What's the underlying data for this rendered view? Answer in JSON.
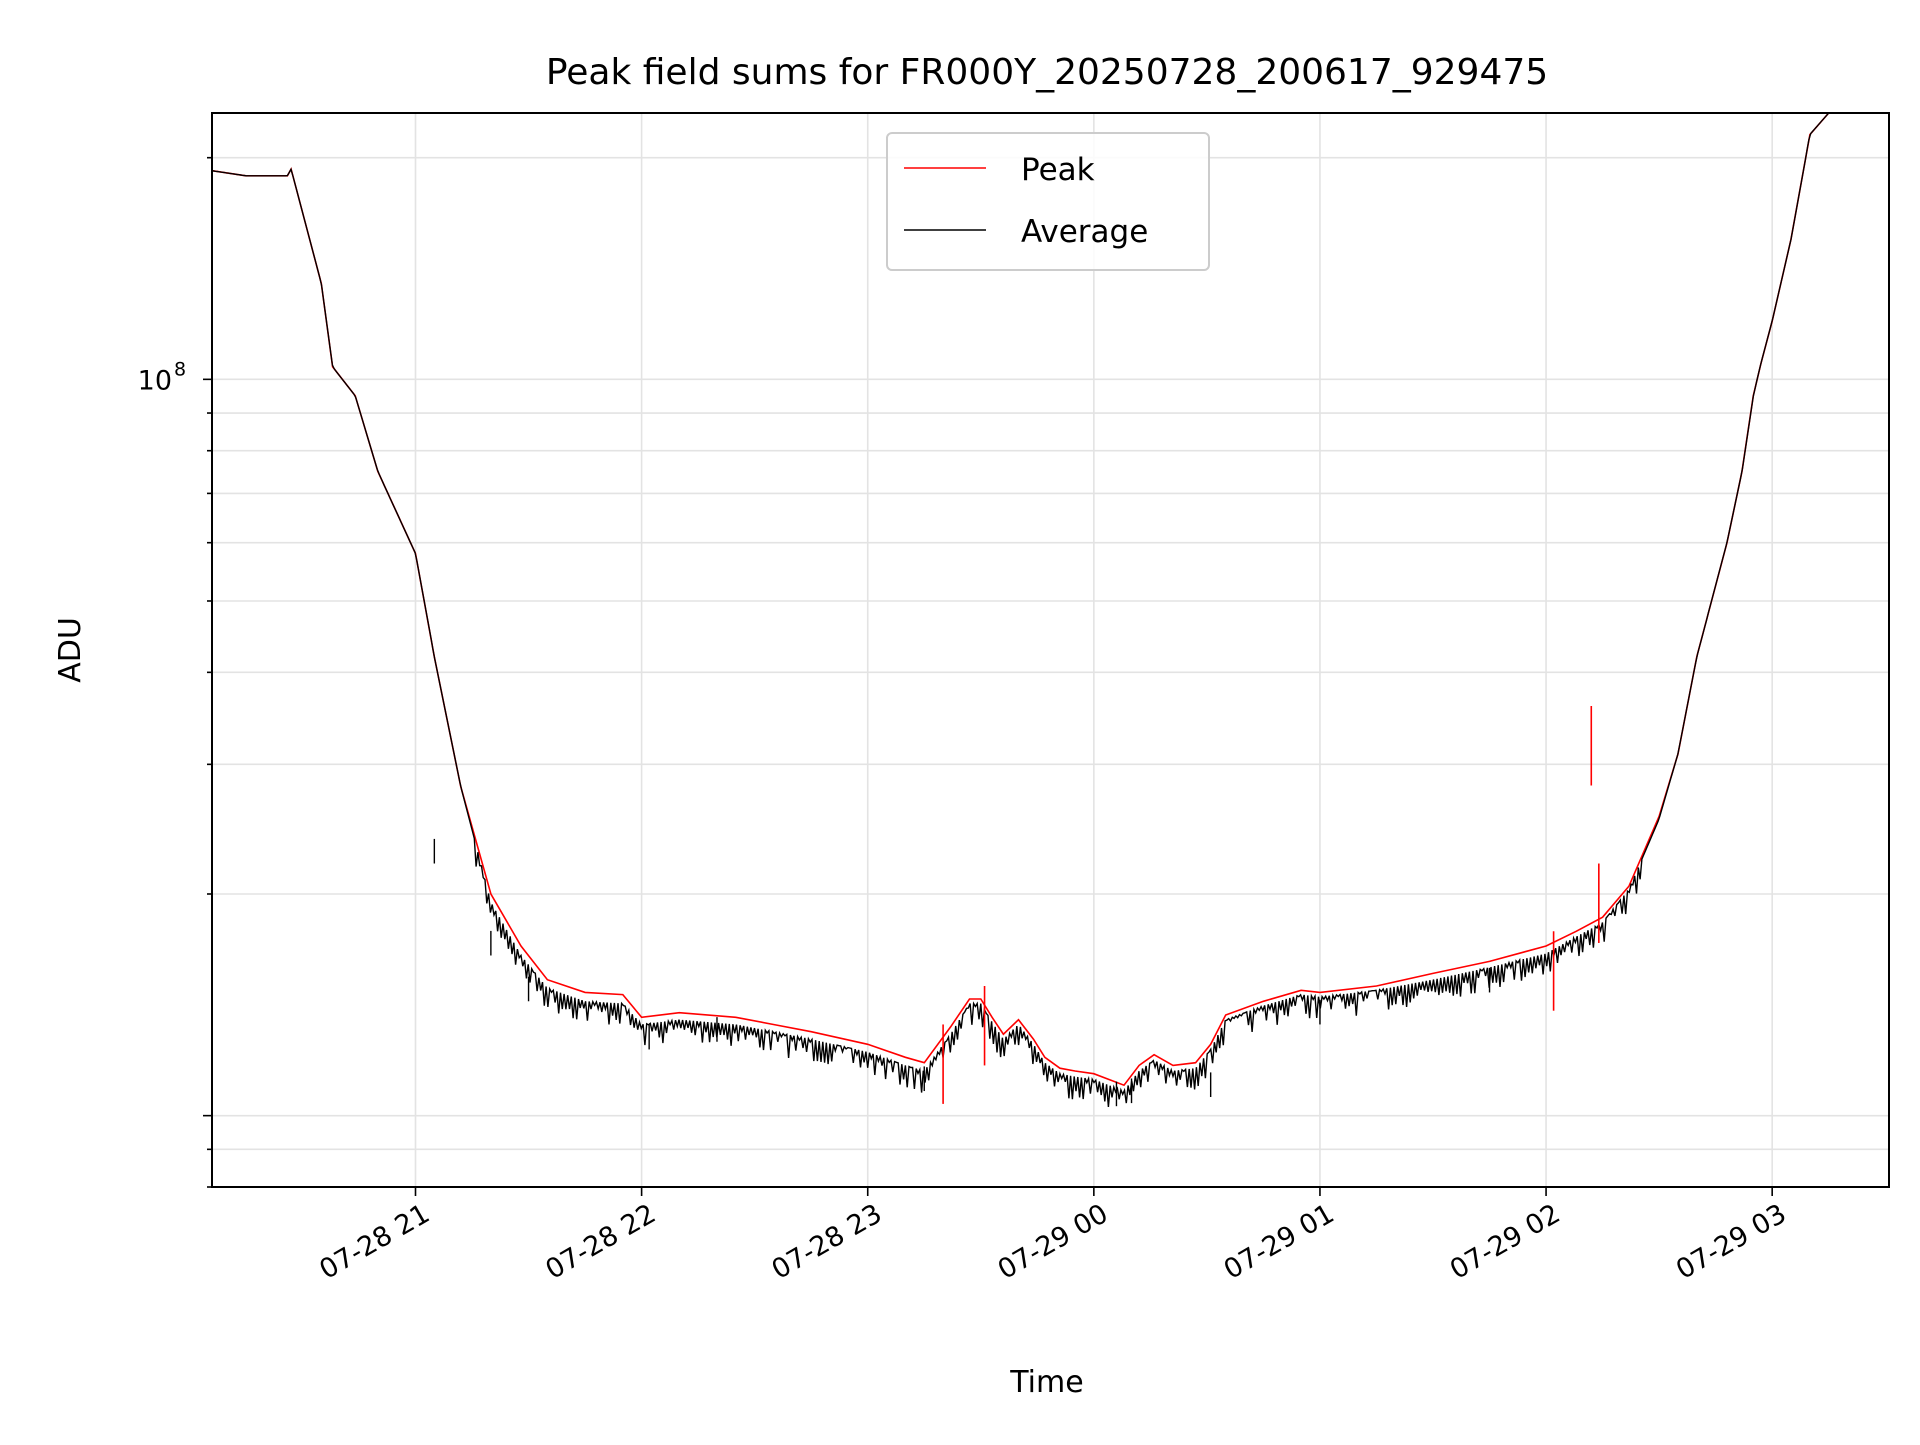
{
  "chart_data": {
    "type": "line",
    "title": "Peak field sums for FR000Y_20250728_200617_929475",
    "xlabel": "Time",
    "ylabel": "ADU",
    "y_scale": "log",
    "y_tick_label": {
      "base": "10",
      "exponent": "8",
      "value": 100000000
    },
    "ylim": [
      8000000,
      230000000
    ],
    "x_ticks": [
      {
        "label": "07-28 21",
        "time": "2025-07-28 21:00"
      },
      {
        "label": "07-28 22",
        "time": "2025-07-28 22:00"
      },
      {
        "label": "07-28 23",
        "time": "2025-07-28 23:00"
      },
      {
        "label": "07-29 00",
        "time": "2025-07-29 00:00"
      },
      {
        "label": "07-29 01",
        "time": "2025-07-29 01:00"
      },
      {
        "label": "07-29 02",
        "time": "2025-07-29 02:00"
      },
      {
        "label": "07-29 03",
        "time": "2025-07-29 03:00"
      }
    ],
    "xlim": [
      "2025-07-28 20:06",
      "2025-07-29 03:31"
    ],
    "grid": true,
    "legend_position": "top-center",
    "series": [
      {
        "name": "Peak",
        "color": "#ff0000",
        "x": [
          "2025-07-28 20:06",
          "2025-07-28 20:15",
          "2025-07-28 20:26",
          "2025-07-28 20:27",
          "2025-07-28 20:35",
          "2025-07-28 20:38",
          "2025-07-28 20:44",
          "2025-07-28 20:50",
          "2025-07-28 21:00",
          "2025-07-28 21:05",
          "2025-07-28 21:12",
          "2025-07-28 21:20",
          "2025-07-28 21:28",
          "2025-07-28 21:35",
          "2025-07-28 21:45",
          "2025-07-28 21:55",
          "2025-07-28 22:00",
          "2025-07-28 22:10",
          "2025-07-28 22:25",
          "2025-07-28 22:35",
          "2025-07-28 22:45",
          "2025-07-28 23:00",
          "2025-07-28 23:10",
          "2025-07-28 23:15",
          "2025-07-28 23:22",
          "2025-07-28 23:27",
          "2025-07-28 23:30",
          "2025-07-28 23:33",
          "2025-07-28 23:36",
          "2025-07-28 23:40",
          "2025-07-28 23:44",
          "2025-07-28 23:47",
          "2025-07-28 23:51",
          "2025-07-28 23:55",
          "2025-07-29 00:00",
          "2025-07-29 00:08",
          "2025-07-29 00:12",
          "2025-07-29 00:16",
          "2025-07-29 00:21",
          "2025-07-29 00:27",
          "2025-07-29 00:31",
          "2025-07-29 00:35",
          "2025-07-29 00:45",
          "2025-07-29 00:55",
          "2025-07-29 01:00",
          "2025-07-29 01:15",
          "2025-07-29 01:30",
          "2025-07-29 01:45",
          "2025-07-29 02:00",
          "2025-07-29 02:08",
          "2025-07-29 02:15",
          "2025-07-29 02:22",
          "2025-07-29 02:30",
          "2025-07-29 02:35",
          "2025-07-29 02:40",
          "2025-07-29 02:48",
          "2025-07-29 02:52",
          "2025-07-29 02:55",
          "2025-07-29 02:57",
          "2025-07-29 03:00",
          "2025-07-29 03:05",
          "2025-07-29 03:10",
          "2025-07-29 03:15"
        ],
        "y": [
          192000000,
          189000000,
          189000000,
          193000000,
          135000000,
          104000000,
          95000000,
          75000000,
          58000000,
          42000000,
          28000000,
          20000000,
          17000000,
          15300000,
          14700000,
          14600000,
          13600000,
          13800000,
          13600000,
          13300000,
          13000000,
          12500000,
          12000000,
          11800000,
          13200000,
          14400000,
          14400000,
          13600000,
          12900000,
          13500000,
          12700000,
          12000000,
          11600000,
          11500000,
          11400000,
          11000000,
          11700000,
          12100000,
          11700000,
          11800000,
          12500000,
          13700000,
          14300000,
          14800000,
          14700000,
          15000000,
          15600000,
          16200000,
          17000000,
          17800000,
          18600000,
          20500000,
          25500000,
          31000000,
          42000000,
          60000000,
          75000000,
          95000000,
          105000000,
          120000000,
          155000000,
          215000000,
          230000000
        ],
        "spikes": [
          {
            "time": "2025-07-28 23:20",
            "value": 13300000
          },
          {
            "time": "2025-07-28 23:31",
            "value": 15000000
          },
          {
            "time": "2025-07-29 02:02",
            "value": 17800000
          },
          {
            "time": "2025-07-29 02:12",
            "value": 36000000
          },
          {
            "time": "2025-07-29 02:14",
            "value": 22000000
          }
        ]
      },
      {
        "name": "Average",
        "color": "#000000",
        "x": [
          "2025-07-28 20:06",
          "2025-07-28 20:15",
          "2025-07-28 20:26",
          "2025-07-28 20:27",
          "2025-07-28 20:35",
          "2025-07-28 20:38",
          "2025-07-28 20:44",
          "2025-07-28 20:50",
          "2025-07-28 21:00",
          "2025-07-28 21:05",
          "2025-07-28 21:12",
          "2025-07-28 21:20",
          "2025-07-28 21:28",
          "2025-07-28 21:35",
          "2025-07-28 21:45",
          "2025-07-28 21:55",
          "2025-07-28 22:00",
          "2025-07-28 22:10",
          "2025-07-28 22:25",
          "2025-07-28 22:35",
          "2025-07-28 22:45",
          "2025-07-28 23:00",
          "2025-07-28 23:10",
          "2025-07-28 23:15",
          "2025-07-28 23:22",
          "2025-07-28 23:27",
          "2025-07-28 23:30",
          "2025-07-28 23:33",
          "2025-07-28 23:36",
          "2025-07-28 23:40",
          "2025-07-28 23:44",
          "2025-07-28 23:47",
          "2025-07-28 23:51",
          "2025-07-28 23:55",
          "2025-07-29 00:00",
          "2025-07-29 00:08",
          "2025-07-29 00:12",
          "2025-07-29 00:16",
          "2025-07-29 00:21",
          "2025-07-29 00:27",
          "2025-07-29 00:31",
          "2025-07-29 00:35",
          "2025-07-29 00:45",
          "2025-07-29 00:55",
          "2025-07-29 01:00",
          "2025-07-29 01:15",
          "2025-07-29 01:30",
          "2025-07-29 01:45",
          "2025-07-29 02:00",
          "2025-07-29 02:08",
          "2025-07-29 02:15",
          "2025-07-29 02:22",
          "2025-07-29 02:30",
          "2025-07-29 02:35",
          "2025-07-29 02:40",
          "2025-07-29 02:48",
          "2025-07-29 02:52",
          "2025-07-29 02:55",
          "2025-07-29 02:57",
          "2025-07-29 03:00",
          "2025-07-29 03:05",
          "2025-07-29 03:10",
          "2025-07-29 03:15"
        ],
        "y": [
          192000000,
          189000000,
          189000000,
          193000000,
          135000000,
          104000000,
          95000000,
          75000000,
          58000000,
          42000000,
          28000000,
          19500000,
          16500000,
          14900000,
          14300000,
          14200000,
          13300000,
          13500000,
          13300000,
          13000000,
          12700000,
          12200000,
          11700000,
          11500000,
          12900000,
          14200000,
          14200000,
          13400000,
          12700000,
          13300000,
          12500000,
          11800000,
          11400000,
          11300000,
          11200000,
          10800000,
          11500000,
          11900000,
          11500000,
          11600000,
          12300000,
          13500000,
          14100000,
          14600000,
          14500000,
          14800000,
          15300000,
          15900000,
          16600000,
          17500000,
          18300000,
          20300000,
          25300000,
          31000000,
          42000000,
          60000000,
          75000000,
          95000000,
          105000000,
          120000000,
          155000000,
          215000000,
          230000000
        ],
        "dips": [
          {
            "time": "2025-07-28 21:05",
            "value": 22000000
          },
          {
            "time": "2025-07-28 21:20",
            "value": 16500000
          },
          {
            "time": "2025-07-28 21:30",
            "value": 14300000
          },
          {
            "time": "2025-07-28 22:02",
            "value": 12300000
          },
          {
            "time": "2025-07-28 22:20",
            "value": 12600000
          },
          {
            "time": "2025-07-28 23:15",
            "value": 10800000
          },
          {
            "time": "2025-07-29 00:06",
            "value": 10300000
          },
          {
            "time": "2025-07-29 00:10",
            "value": 10400000
          },
          {
            "time": "2025-07-29 00:31",
            "value": 10600000
          },
          {
            "time": "2025-07-29 01:00",
            "value": 13300000
          },
          {
            "time": "2025-07-29 01:45",
            "value": 14700000
          }
        ]
      }
    ]
  }
}
